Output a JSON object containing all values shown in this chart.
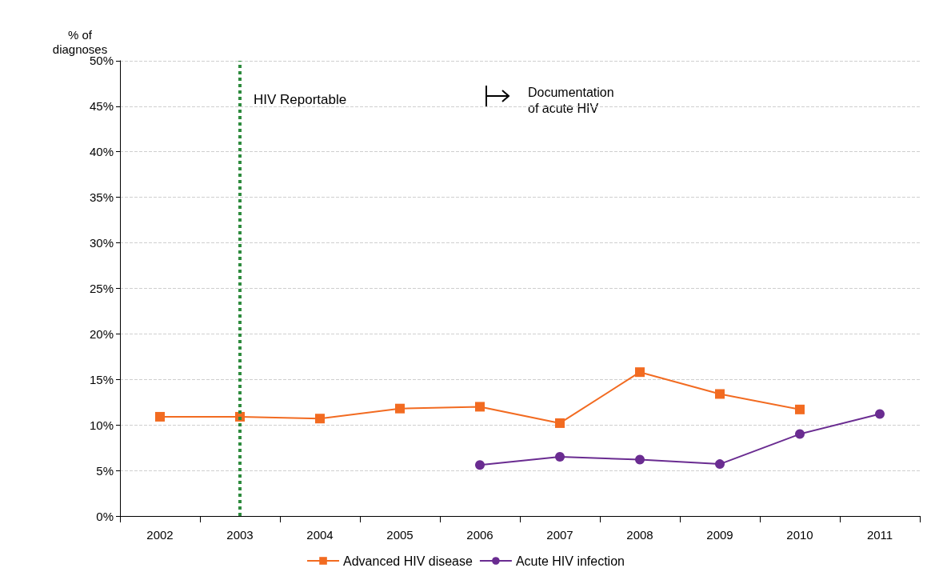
{
  "chart_data": {
    "type": "line",
    "ylabel": "% of\ndiagnoses",
    "categories": [
      "2002",
      "2003",
      "2004",
      "2005",
      "2006",
      "2007",
      "2008",
      "2009",
      "2010",
      "2011"
    ],
    "series": [
      {
        "name": "Advanced HIV disease",
        "color": "#f26b21",
        "marker": "square",
        "values": [
          10.9,
          10.9,
          10.7,
          11.8,
          12.0,
          10.2,
          15.8,
          13.4,
          11.7,
          null
        ]
      },
      {
        "name": "Acute HIV infection",
        "color": "#6a2c91",
        "marker": "circle",
        "values": [
          null,
          null,
          null,
          null,
          5.6,
          6.5,
          6.2,
          5.7,
          9.0,
          11.2
        ]
      }
    ],
    "ylim": [
      0,
      50
    ],
    "yticks": [
      {
        "value": 0,
        "label": "0%"
      },
      {
        "value": 5,
        "label": "5%"
      },
      {
        "value": 10,
        "label": "10%"
      },
      {
        "value": 15,
        "label": "15%"
      },
      {
        "value": 20,
        "label": "20%"
      },
      {
        "value": 25,
        "label": "25%"
      },
      {
        "value": 30,
        "label": "30%"
      },
      {
        "value": 35,
        "label": "35%"
      },
      {
        "value": 40,
        "label": "40%"
      },
      {
        "value": 45,
        "label": "45%"
      },
      {
        "value": 50,
        "label": "50%"
      }
    ],
    "ref_lines": [
      {
        "axis": "x",
        "value": "2003",
        "label": "HIV Reportable",
        "color": "#2e8b3e",
        "line_style": "dotted"
      }
    ],
    "annotations": [
      "Documentation\nof acute HIV"
    ],
    "grid": "y",
    "legend": "bottom"
  }
}
